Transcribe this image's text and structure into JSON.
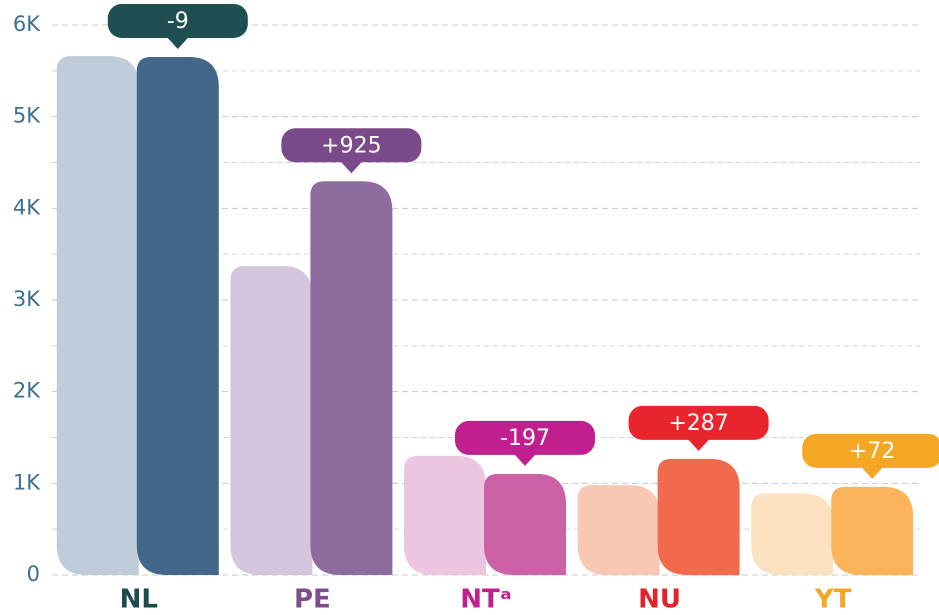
{
  "chart_data": {
    "type": "bar",
    "categories": [
      "NL",
      "PE",
      "NTᵃ",
      "NU",
      "YT"
    ],
    "category_colors": [
      "#1e4b4b",
      "#7e4d8c",
      "#c0208e",
      "#e3232c",
      "#f5a623"
    ],
    "series": [
      {
        "colors": [
          "#c0ccd9",
          "#d4c6dc",
          "#ecc6e0",
          "#f9c8b4",
          "#fde2c2"
        ],
        "values": [
          5660,
          3370,
          1300,
          980,
          890
        ]
      },
      {
        "colors": [
          "#426788",
          "#8e6d9e",
          "#cc61a6",
          "#f26a4e",
          "#fbb45a"
        ],
        "values": [
          5651,
          4295,
          1103,
          1267,
          962
        ]
      }
    ],
    "annotations": [
      "-9",
      "+925",
      "-197",
      "+287",
      "+72"
    ],
    "annotation_colors": [
      "#1f4f50",
      "#7b4a8a",
      "#c0208e",
      "#e8242c",
      "#f5a623"
    ],
    "ylim": [
      0,
      6000
    ],
    "yticks": [
      {
        "value": 0,
        "label": "0"
      },
      {
        "value": 1000,
        "label": "1K"
      },
      {
        "value": 2000,
        "label": "2K"
      },
      {
        "value": 3000,
        "label": "3K"
      },
      {
        "value": 4000,
        "label": "4K"
      },
      {
        "value": 5000,
        "label": "5K"
      },
      {
        "value": 6000,
        "label": "6K"
      }
    ],
    "minor_yticks": [
      500,
      1500,
      2500,
      3500,
      4500,
      5500
    ],
    "grid": true
  }
}
